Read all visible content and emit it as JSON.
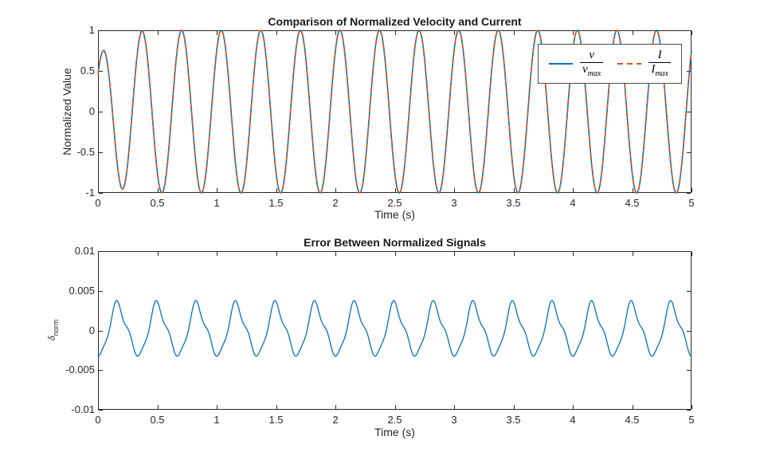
{
  "figure": {
    "background": "#ffffff",
    "axis_color": "#262626",
    "line_blue": "#0072BD",
    "line_orange": "#D95319"
  },
  "chart_data": [
    {
      "type": "line",
      "title": "Comparison of Normalized Velocity and Current",
      "xlabel": "Time (s)",
      "ylabel": "Normalized Value",
      "xlim": [
        0,
        5
      ],
      "ylim": [
        -1,
        1
      ],
      "xticks": [
        0,
        0.5,
        1,
        1.5,
        2,
        2.5,
        3,
        3.5,
        4,
        4.5,
        5
      ],
      "xtick_labels": [
        "0",
        "0.5",
        "1",
        "1.5",
        "2",
        "2.5",
        "3",
        "3.5",
        "4",
        "4.5",
        "5"
      ],
      "yticks": [
        -1,
        -0.5,
        0,
        0.5,
        1
      ],
      "ytick_labels": [
        "-1",
        "-0.5",
        "0",
        "0.5",
        "1"
      ],
      "grid": false,
      "legend": {
        "position": "northeast",
        "entries": [
          {
            "label": "v/v_max",
            "numerator": "v",
            "den_base": "v",
            "den_sub": "max",
            "color": "#0072BD",
            "style": "solid"
          },
          {
            "label": "I/I_max",
            "numerator": "I",
            "den_base": "I",
            "den_sub": "max",
            "color": "#D95319",
            "style": "dashed"
          }
        ]
      },
      "series": [
        {
          "name": "v/v_max",
          "color": "#0072BD",
          "style": "solid",
          "width": 1.6,
          "signal": {
            "harmonics": [
              {
                "frequency_hz": 3,
                "amplitude": 1,
                "phase_rad": 0.85
              }
            ],
            "transient": {
              "depth": 0.38,
              "tau_s": 0.1
            }
          }
        },
        {
          "name": "I/I_max",
          "color": "#D95319",
          "style": "dashed",
          "width": 1.6,
          "signal": {
            "harmonics": [
              {
                "frequency_hz": 3,
                "amplitude": 1,
                "phase_rad": 0.8465
              }
            ],
            "transient": {
              "depth": 0.38,
              "tau_s": 0.1
            }
          }
        }
      ]
    },
    {
      "type": "line",
      "title": "Error Between Normalized Signals",
      "xlabel": "Time (s)",
      "ylabel": "δ_norm",
      "ylabel_base": "δ",
      "ylabel_sub": "norm",
      "xlim": [
        0,
        5
      ],
      "ylim": [
        -0.01,
        0.01
      ],
      "xticks": [
        0,
        0.5,
        1,
        1.5,
        2,
        2.5,
        3,
        3.5,
        4,
        4.5,
        5
      ],
      "xtick_labels": [
        "0",
        "0.5",
        "1",
        "1.5",
        "2",
        "2.5",
        "3",
        "3.5",
        "4",
        "4.5",
        "5"
      ],
      "yticks": [
        -0.01,
        -0.005,
        0,
        0.005,
        0.01
      ],
      "ytick_labels": [
        "-0.01",
        "-0.005",
        "0",
        "0.005",
        "0.01"
      ],
      "grid": false,
      "series": [
        {
          "name": "δ_norm",
          "color": "#0072BD",
          "style": "solid",
          "width": 1.3,
          "signal": {
            "harmonics": [
              {
                "frequency_hz": 3,
                "amplitude": 0.0031,
                "phase_rad": -1.63
              },
              {
                "frequency_hz": 6,
                "amplitude": 0.0004,
                "phase_rad": 2.6
              },
              {
                "frequency_hz": 9,
                "amplitude": 0.00045,
                "phase_rad": -0.9
              }
            ]
          }
        }
      ]
    }
  ]
}
